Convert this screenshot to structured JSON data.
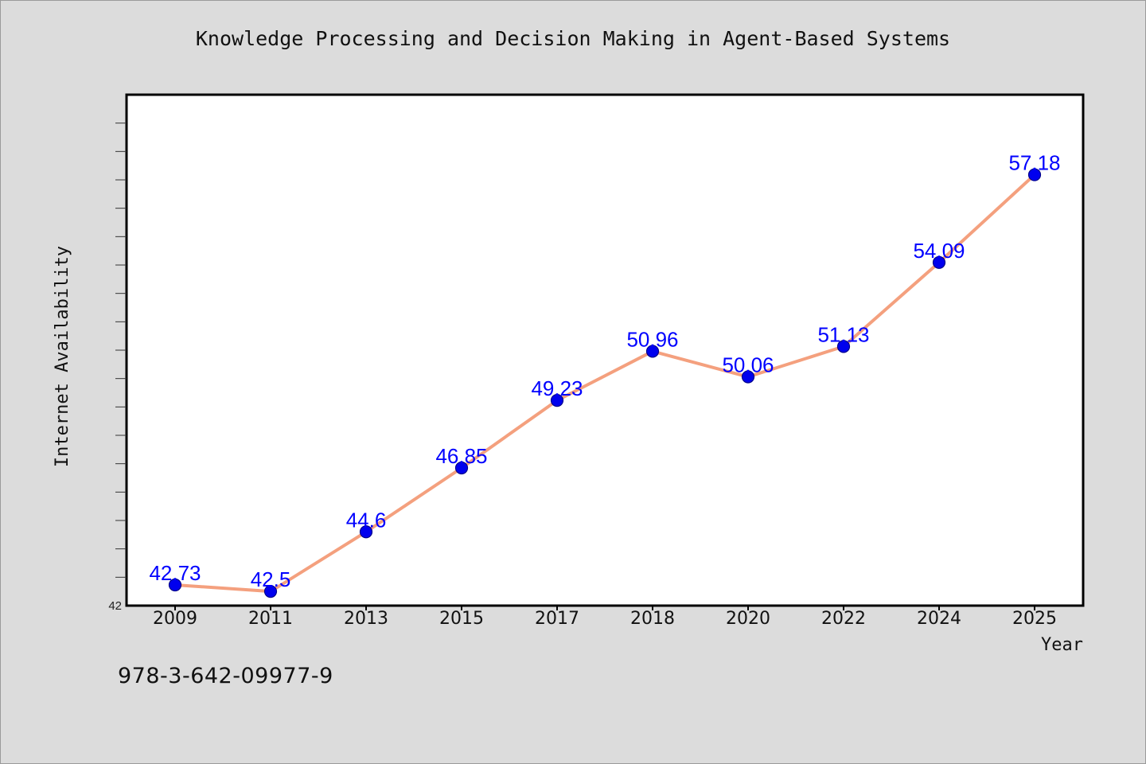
{
  "chart_data": {
    "type": "line",
    "title": "Knowledge Processing and Decision Making in Agent-Based Systems",
    "xlabel": "Year",
    "ylabel": "Internet Availability",
    "categories": [
      "2009",
      "2011",
      "2013",
      "2015",
      "2017",
      "2018",
      "2020",
      "2022",
      "2024",
      "2025"
    ],
    "series": [
      {
        "values": [
          42.73,
          42.5,
          44.6,
          46.85,
          49.23,
          50.96,
          50.06,
          51.13,
          54.09,
          57.18
        ],
        "labels": [
          "42.73",
          "42.5",
          "44.6",
          "46.85",
          "49.23",
          "50.96",
          "50.06",
          "51.13",
          "54.09",
          "57.18"
        ],
        "line_color": "#f4a07e",
        "marker_color": "#0000ee",
        "label_color": "#0000ff"
      }
    ],
    "ylim": [
      42,
      60
    ],
    "ytick_labels": [
      "42"
    ],
    "grid": false,
    "legend": false
  },
  "caption": "978-3-642-09977-9"
}
